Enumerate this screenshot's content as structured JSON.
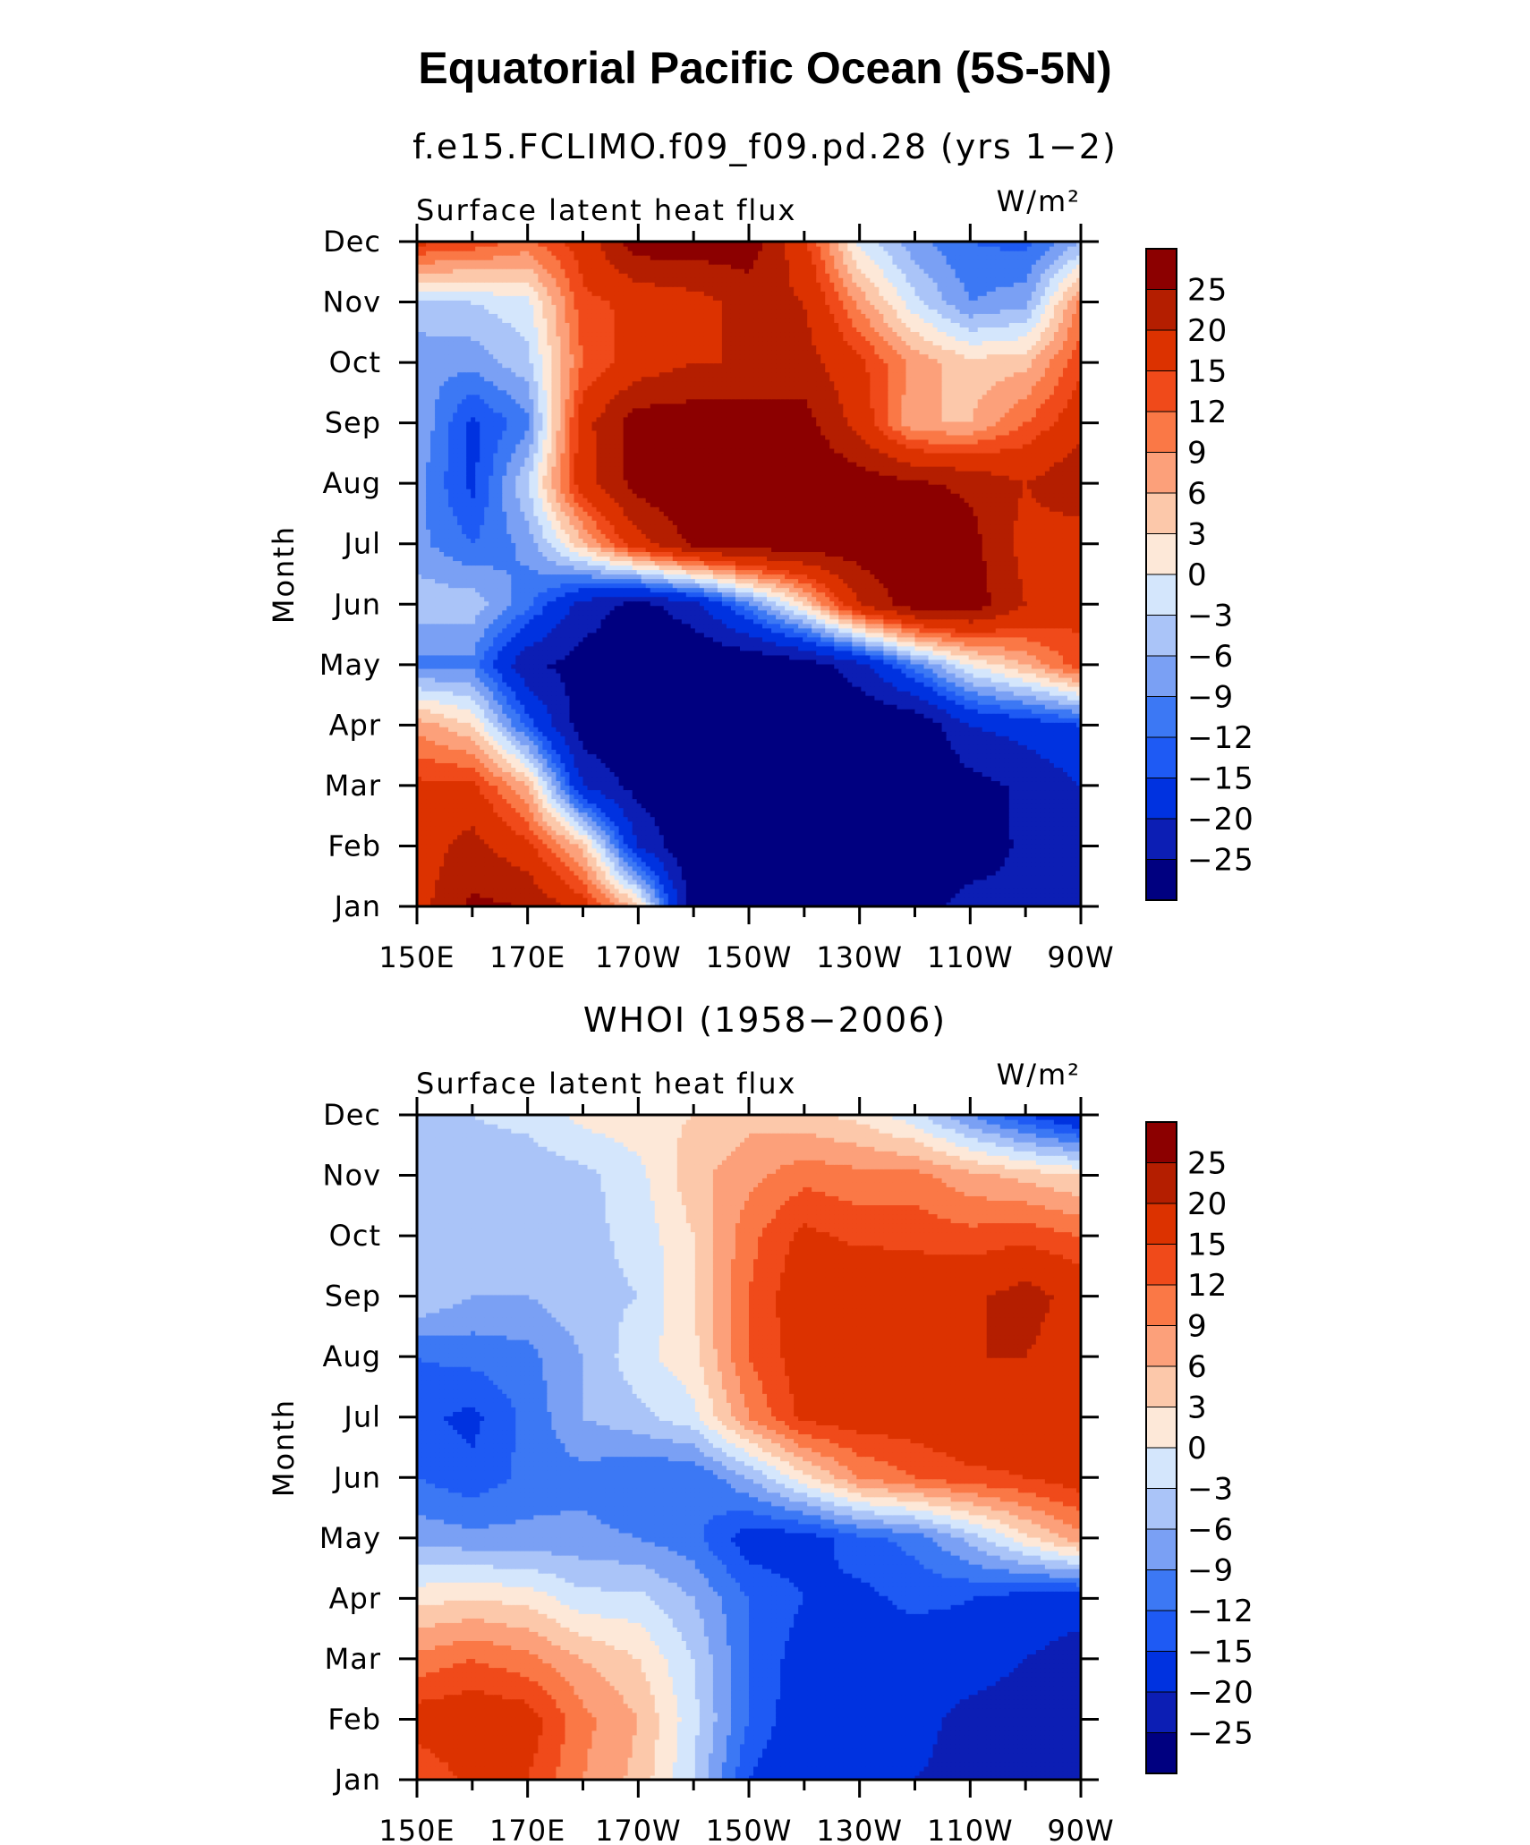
{
  "title": "Equatorial Pacific Ocean (5S-5N)",
  "colors": [
    "#000080",
    "#0c1eb4",
    "#0032e0",
    "#1e5af4",
    "#3c78f4",
    "#7aa0f4",
    "#aac4f8",
    "#d4e6fc",
    "#fde8d8",
    "#fcc8aa",
    "#fca07a",
    "#fa7846",
    "#f04a1a",
    "#dc3200",
    "#b41e00",
    "#8c0000"
  ],
  "chart_data": [
    {
      "type": "heatmap",
      "subtitle": "f.e15.FCLIMO.f09_f09.pd.28 (yrs 1−2)",
      "panel_label": "Surface latent heat flux",
      "units": "W/m²",
      "ylabel": "Month",
      "x_tick_labels": [
        "150E",
        "170E",
        "170W",
        "150W",
        "130W",
        "110W",
        "90W"
      ],
      "y_tick_labels": [
        "Jan",
        "Feb",
        "Mar",
        "Apr",
        "May",
        "Jun",
        "Jul",
        "Aug",
        "Sep",
        "Oct",
        "Nov",
        "Dec"
      ],
      "x_longitudes": [
        150,
        160,
        170,
        180,
        190,
        200,
        210,
        220,
        230,
        240,
        250,
        260,
        270
      ],
      "levels": [
        -25,
        -20,
        -15,
        -12,
        -9,
        -6,
        -3,
        0,
        3,
        6,
        9,
        12,
        15,
        20,
        25
      ],
      "colorbar_labels": [
        "25",
        "20",
        "15",
        "12",
        "9",
        "6",
        "3",
        "0",
        "−3",
        "−6",
        "−9",
        "−12",
        "−15",
        "−20",
        "−25"
      ],
      "grid": [
        [
          18,
          26,
          25,
          17,
          4,
          -28,
          -30,
          -30,
          -27,
          -27,
          -23,
          -24,
          -20
        ],
        [
          17,
          22,
          16,
          5,
          -20,
          -30,
          -30,
          -30,
          -30,
          -30,
          -28,
          -24,
          -20
        ],
        [
          16,
          16,
          6,
          -20,
          -27,
          -30,
          -30,
          -30,
          -30,
          -30,
          -27,
          -24,
          -20
        ],
        [
          8,
          3,
          -13,
          -28,
          -30,
          -30,
          -30,
          -30,
          -30,
          -30,
          -20,
          -18,
          -15
        ],
        [
          -10,
          -10,
          -24,
          -27,
          -30,
          -30,
          -30,
          -28,
          -22,
          -10,
          0,
          6,
          14
        ],
        [
          -4,
          -4,
          -11,
          -22,
          -27,
          -22,
          -10,
          3,
          20,
          28,
          28,
          20,
          16
        ],
        [
          -8,
          -12,
          -8,
          5,
          18,
          26,
          28,
          28,
          28,
          28,
          27,
          18,
          17
        ],
        [
          -8,
          -16,
          -3,
          18,
          27,
          30,
          30,
          30,
          28,
          26,
          24,
          20,
          24
        ],
        [
          -6,
          -16,
          -10,
          18,
          28,
          28,
          28,
          27,
          18,
          6,
          6,
          12,
          18
        ],
        [
          -8,
          -8,
          -4,
          12,
          17,
          20,
          20,
          22,
          16,
          8,
          4,
          5,
          14
        ],
        [
          -4,
          -3,
          -1,
          14,
          16,
          18,
          22,
          20,
          8,
          -2,
          -9,
          -7,
          10
        ],
        [
          16,
          14,
          11,
          17,
          28,
          28,
          28,
          16,
          -1,
          -8,
          -12,
          -13,
          -6
        ]
      ]
    },
    {
      "type": "heatmap",
      "subtitle": "WHOI (1958−2006)",
      "panel_label": "Surface latent heat flux",
      "units": "W/m²",
      "ylabel": "Month",
      "x_tick_labels": [
        "150E",
        "170E",
        "170W",
        "150W",
        "130W",
        "110W",
        "90W"
      ],
      "y_tick_labels": [
        "Jan",
        "Feb",
        "Mar",
        "Apr",
        "May",
        "Jun",
        "Jul",
        "Aug",
        "Sep",
        "Oct",
        "Nov",
        "Dec"
      ],
      "x_longitudes": [
        150,
        160,
        170,
        180,
        190,
        200,
        210,
        220,
        230,
        240,
        250,
        260,
        270
      ],
      "levels": [
        -25,
        -20,
        -15,
        -12,
        -9,
        -6,
        -3,
        0,
        3,
        6,
        9,
        12,
        15,
        20,
        25
      ],
      "colorbar_labels": [
        "25",
        "20",
        "15",
        "12",
        "9",
        "6",
        "3",
        "0",
        "−3",
        "−6",
        "−9",
        "−12",
        "−15",
        "−20",
        "−25"
      ],
      "grid": [
        [
          12,
          16,
          15,
          9,
          5,
          -3,
          -15,
          -20,
          -18,
          -20,
          -22,
          -22,
          -25
        ],
        [
          17,
          18,
          17,
          10,
          6,
          -2,
          -12,
          -18,
          -17,
          -18,
          -22,
          -23,
          -25
        ],
        [
          10,
          12,
          10,
          6,
          3,
          -3,
          -12,
          -17,
          -16,
          -18,
          -17,
          -20,
          -22
        ],
        [
          2,
          3,
          2,
          -2,
          -2,
          -6,
          -12,
          -15,
          -16,
          -14,
          -15,
          -17,
          -18
        ],
        [
          -7,
          -8,
          -8,
          -8,
          -9,
          -11,
          -17,
          -17,
          -13,
          -11,
          -5,
          2,
          8
        ],
        [
          -12,
          -14,
          -11,
          -10,
          -12,
          -12,
          -6,
          2,
          9,
          12,
          14,
          15,
          17
        ],
        [
          -14,
          -16,
          -11,
          -6,
          -4,
          -1,
          9,
          16,
          17,
          17,
          19,
          18,
          17
        ],
        [
          -12,
          -11,
          -10,
          -6,
          -1,
          2,
          12,
          17,
          20,
          18,
          20,
          20,
          17
        ],
        [
          -3,
          -6,
          -6,
          -4,
          -3,
          3,
          12,
          18,
          20,
          18,
          19,
          22,
          18
        ],
        [
          -3,
          -3,
          -4,
          -4,
          -2,
          3,
          11,
          16,
          14,
          14,
          13,
          14,
          12
        ],
        [
          -4,
          -5,
          -5,
          -4,
          -1,
          5,
          8,
          11,
          10,
          10,
          7,
          5,
          3
        ],
        [
          -3,
          -3,
          -2,
          1,
          2,
          3,
          5,
          4,
          2,
          -2,
          -9,
          -15,
          -20
        ]
      ]
    }
  ]
}
